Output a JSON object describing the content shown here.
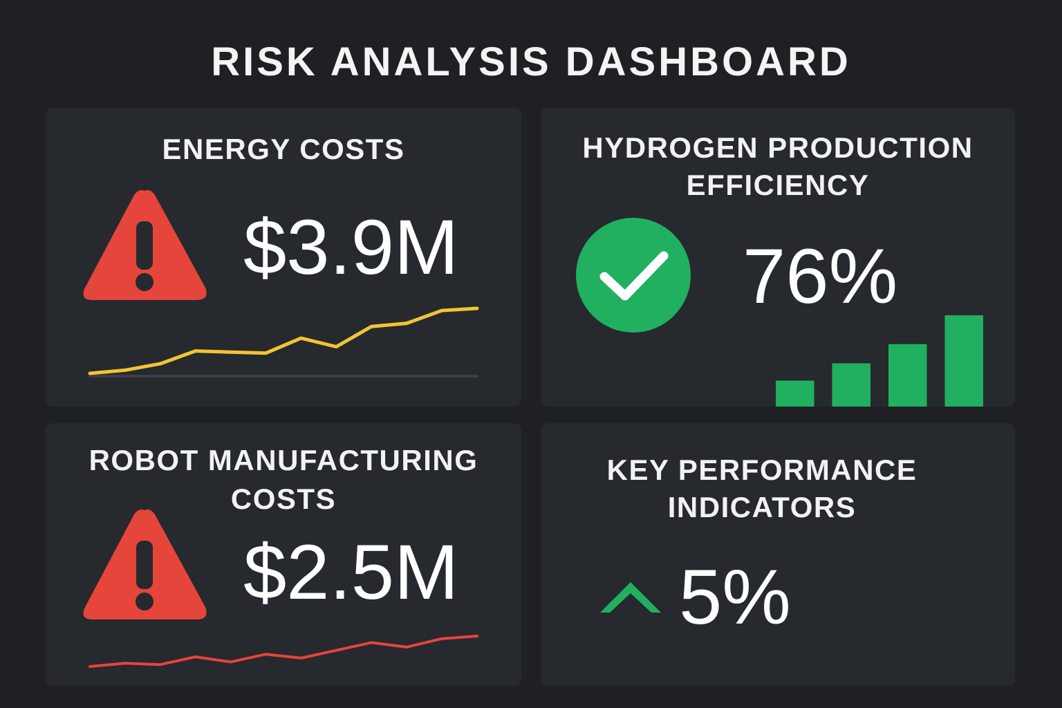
{
  "dashboard": {
    "title": "RISK ANALYSIS DASHBOARD"
  },
  "cards": {
    "energy": {
      "title": "ENERGY COSTS",
      "value": "$3.9M",
      "status_icon": "warning-triangle-icon",
      "trend_color": "#f2c531",
      "trend": [
        3,
        6,
        12,
        24,
        23,
        22,
        36,
        28,
        47,
        50,
        62,
        64
      ]
    },
    "hydrogen": {
      "title_line1": "HYDROGEN PRODUCTION",
      "title_line2": "EFFICIENCY",
      "value": "76%",
      "status_icon": "check-circle-icon",
      "bar_color": "#21b060",
      "bars": [
        27,
        45,
        65,
        95
      ]
    },
    "robot": {
      "title_line1": "ROBOT MANUFACTURING",
      "title_line2": "COSTS",
      "value": "$2.5M",
      "status_icon": "warning-triangle-icon",
      "trend_color": "#e5453a",
      "trend": [
        5,
        10,
        8,
        20,
        12,
        24,
        18,
        30,
        42,
        35,
        48,
        52
      ]
    },
    "kpi": {
      "title_line1": "KEY PERFORMANCE",
      "title_line2": "INDICATORS",
      "value": "5%",
      "status_icon": "chevron-up-icon",
      "accent_color": "#21b060"
    }
  },
  "colors": {
    "background": "#1e2024",
    "card": "#26292e",
    "warning": "#e5453a",
    "success": "#21b060",
    "energy_line": "#f2c531",
    "robot_line": "#e5453a"
  }
}
